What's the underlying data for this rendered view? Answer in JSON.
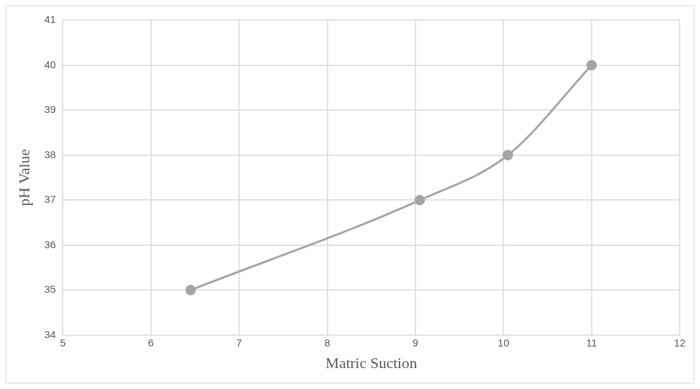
{
  "chart_data": {
    "type": "line",
    "xlabel": "Matric Suction",
    "ylabel": "pH Value",
    "x": [
      6.45,
      9.05,
      10.05,
      11
    ],
    "series": [
      {
        "color": "#a5a5a5",
        "values": [
          35,
          37,
          38,
          40
        ]
      }
    ],
    "xlim": [
      5,
      12
    ],
    "xticks": [
      5,
      6,
      7,
      8,
      9,
      10,
      11,
      12
    ],
    "ylim": [
      34,
      41
    ],
    "yticks": [
      34,
      35,
      36,
      37,
      38,
      39,
      40,
      41
    ],
    "grid": true,
    "legend": false,
    "marker": "circle",
    "line_style": "solid"
  }
}
